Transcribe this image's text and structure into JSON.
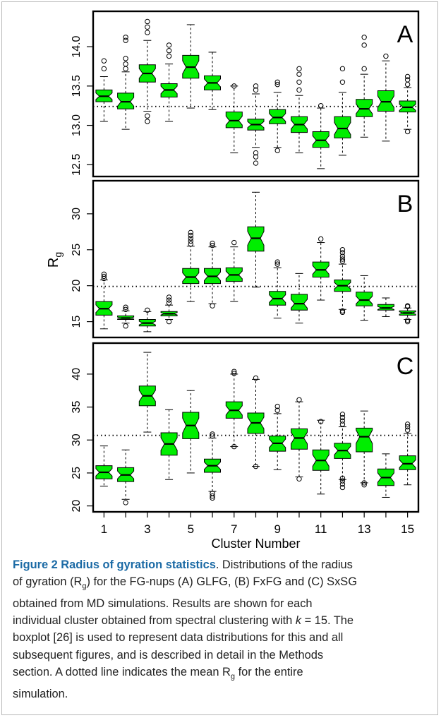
{
  "chart_data": {
    "type": "boxplot",
    "shared_x": {
      "label": "Cluster Number",
      "categories": [
        1,
        2,
        3,
        4,
        5,
        6,
        7,
        8,
        9,
        10,
        11,
        12,
        13,
        14,
        15
      ],
      "tick_labels": [
        "1",
        "3",
        "5",
        "7",
        "9",
        "11",
        "13",
        "15"
      ]
    },
    "y_axis_label": "Rg",
    "panels": [
      {
        "panel_label": "A",
        "ylim": [
          12.35,
          14.45
        ],
        "y_ticks": [
          "12.5",
          "13.0",
          "13.5",
          "14.0"
        ],
        "mean_line": 13.24,
        "boxes": [
          {
            "whisker_low": 13.05,
            "q1": 13.3,
            "median": 13.37,
            "q3": 13.45,
            "whisker_high": 13.62,
            "outliers": [
              13.72,
              13.82
            ]
          },
          {
            "whisker_low": 12.95,
            "q1": 13.21,
            "median": 13.3,
            "q3": 13.41,
            "whisker_high": 13.68,
            "outliers": [
              13.72,
              13.78,
              13.85,
              14.08,
              14.12
            ]
          },
          {
            "whisker_low": 13.18,
            "q1": 13.55,
            "median": 13.66,
            "q3": 13.77,
            "whisker_high": 14.08,
            "outliers": [
              13.05,
              13.12,
              14.18,
              14.25,
              14.32
            ]
          },
          {
            "whisker_low": 13.05,
            "q1": 13.36,
            "median": 13.45,
            "q3": 13.53,
            "whisker_high": 13.78,
            "outliers": [
              13.88,
              13.95,
              14.02
            ]
          },
          {
            "whisker_low": 13.22,
            "q1": 13.6,
            "median": 13.74,
            "q3": 13.89,
            "whisker_high": 14.28,
            "outliers": []
          },
          {
            "whisker_low": 13.2,
            "q1": 13.45,
            "median": 13.54,
            "q3": 13.63,
            "whisker_high": 13.93,
            "outliers": []
          },
          {
            "whisker_low": 12.65,
            "q1": 12.97,
            "median": 13.06,
            "q3": 13.17,
            "whisker_high": 13.5,
            "outliers": [
              13.5
            ]
          },
          {
            "whisker_low": 12.72,
            "q1": 12.94,
            "median": 13.01,
            "q3": 13.08,
            "whisker_high": 13.4,
            "outliers": [
              12.52,
              12.6,
              12.65,
              13.45,
              13.5
            ]
          },
          {
            "whisker_low": 12.72,
            "q1": 13.02,
            "median": 13.1,
            "q3": 13.2,
            "whisker_high": 13.42,
            "outliers": [
              12.68,
              13.52,
              13.55
            ]
          },
          {
            "whisker_low": 12.65,
            "q1": 12.91,
            "median": 13.01,
            "q3": 13.11,
            "whisker_high": 13.38,
            "outliers": [
              13.45,
              13.55,
              13.65,
              13.72
            ]
          },
          {
            "whisker_low": 12.45,
            "q1": 12.72,
            "median": 12.81,
            "q3": 12.92,
            "whisker_high": 13.22,
            "outliers": [
              13.25
            ]
          },
          {
            "whisker_low": 12.62,
            "q1": 12.84,
            "median": 12.96,
            "q3": 13.11,
            "whisker_high": 13.42,
            "outliers": [
              13.55,
              13.72
            ]
          },
          {
            "whisker_low": 12.85,
            "q1": 13.11,
            "median": 13.21,
            "q3": 13.33,
            "whisker_high": 13.65,
            "outliers": [
              13.72,
              14.02,
              14.12
            ]
          },
          {
            "whisker_low": 12.8,
            "q1": 13.18,
            "median": 13.3,
            "q3": 13.44,
            "whisker_high": 13.82,
            "outliers": [
              13.88
            ]
          },
          {
            "whisker_low": 12.95,
            "q1": 13.17,
            "median": 13.23,
            "q3": 13.31,
            "whisker_high": 13.48,
            "outliers": [
              12.92,
              13.52,
              13.58,
              13.62
            ]
          }
        ]
      },
      {
        "panel_label": "B",
        "ylim": [
          12.8,
          34.6
        ],
        "y_ticks": [
          "15",
          "20",
          "25",
          "30"
        ],
        "mean_line": 19.9,
        "boxes": [
          {
            "whisker_low": 14.0,
            "q1": 15.9,
            "median": 16.8,
            "q3": 17.8,
            "whisker_high": 20.8,
            "outliers": [
              21.0,
              21.3,
              21.6
            ]
          },
          {
            "whisker_low": 14.8,
            "q1": 15.3,
            "median": 15.5,
            "q3": 15.8,
            "whisker_high": 16.5,
            "outliers": [
              14.4,
              16.7,
              17.0
            ]
          },
          {
            "whisker_low": 13.6,
            "q1": 14.4,
            "median": 14.8,
            "q3": 15.3,
            "whisker_high": 16.4,
            "outliers": [
              16.6
            ]
          },
          {
            "whisker_low": 15.3,
            "q1": 15.8,
            "median": 16.1,
            "q3": 16.4,
            "whisker_high": 17.3,
            "outliers": [
              15.0,
              17.6,
              18.0,
              18.4
            ]
          },
          {
            "whisker_low": 17.8,
            "q1": 20.3,
            "median": 21.2,
            "q3": 22.4,
            "whisker_high": 25.5,
            "outliers": [
              25.8,
              26.2,
              26.6,
              27.0,
              27.4
            ]
          },
          {
            "whisker_low": 17.5,
            "q1": 20.3,
            "median": 21.3,
            "q3": 22.4,
            "whisker_high": 25.4,
            "outliers": [
              17.2,
              25.6,
              25.9
            ]
          },
          {
            "whisker_low": 17.8,
            "q1": 20.6,
            "median": 21.5,
            "q3": 22.5,
            "whisker_high": 25.4,
            "outliers": [
              26.0
            ]
          },
          {
            "whisker_low": 19.8,
            "q1": 24.8,
            "median": 26.6,
            "q3": 28.2,
            "whisker_high": 33.0,
            "outliers": []
          },
          {
            "whisker_low": 15.5,
            "q1": 17.3,
            "median": 18.2,
            "q3": 19.2,
            "whisker_high": 22.5,
            "outliers": [
              23.0,
              23.3
            ]
          },
          {
            "whisker_low": 14.8,
            "q1": 16.6,
            "median": 17.5,
            "q3": 18.8,
            "whisker_high": 21.7,
            "outliers": []
          },
          {
            "whisker_low": 18.0,
            "q1": 21.2,
            "median": 22.2,
            "q3": 23.3,
            "whisker_high": 26.0,
            "outliers": [
              26.5
            ]
          },
          {
            "whisker_low": 16.7,
            "q1": 19.2,
            "median": 20.0,
            "q3": 20.8,
            "whisker_high": 23.0,
            "outliers": [
              16.3,
              16.5,
              23.4,
              23.7,
              24.1,
              24.6,
              25.0
            ]
          },
          {
            "whisker_low": 15.2,
            "q1": 17.2,
            "median": 18.0,
            "q3": 19.1,
            "whisker_high": 21.4,
            "outliers": []
          },
          {
            "whisker_low": 15.7,
            "q1": 16.6,
            "median": 16.9,
            "q3": 17.4,
            "whisker_high": 18.3,
            "outliers": []
          },
          {
            "whisker_low": 15.3,
            "q1": 15.9,
            "median": 16.2,
            "q3": 16.5,
            "whisker_high": 16.9,
            "outliers": [
              15.0,
              15.2,
              17.1,
              17.2
            ]
          }
        ]
      },
      {
        "panel_label": "C",
        "ylim": [
          19.1,
          44.7
        ],
        "y_ticks": [
          "20",
          "25",
          "30",
          "35",
          "40"
        ],
        "mean_line": 30.7,
        "boxes": [
          {
            "whisker_low": 23.0,
            "q1": 24.1,
            "median": 25.1,
            "q3": 26.1,
            "whisker_high": 29.1,
            "outliers": []
          },
          {
            "whisker_low": 21.0,
            "q1": 23.7,
            "median": 24.7,
            "q3": 25.8,
            "whisker_high": 28.5,
            "outliers": [
              20.5
            ]
          },
          {
            "whisker_low": 31.2,
            "q1": 35.2,
            "median": 36.7,
            "q3": 38.2,
            "whisker_high": 43.3,
            "outliers": []
          },
          {
            "whisker_low": 24.0,
            "q1": 27.7,
            "median": 29.4,
            "q3": 31.1,
            "whisker_high": 34.6,
            "outliers": []
          },
          {
            "whisker_low": 25.0,
            "q1": 30.2,
            "median": 32.2,
            "q3": 34.2,
            "whisker_high": 37.5,
            "outliers": []
          },
          {
            "whisker_low": 22.2,
            "q1": 25.1,
            "median": 26.1,
            "q3": 27.1,
            "whisker_high": 30.3,
            "outliers": [
              21.2,
              21.5,
              21.9,
              30.6,
              30.9
            ]
          },
          {
            "whisker_low": 29.0,
            "q1": 33.3,
            "median": 34.5,
            "q3": 35.8,
            "whisker_high": 40.0,
            "outliers": [
              29.0,
              40.1,
              40.4
            ]
          },
          {
            "whisker_low": 26.0,
            "q1": 31.0,
            "median": 32.6,
            "q3": 34.1,
            "whisker_high": 39.2,
            "outliers": [
              26.0,
              39.4
            ]
          },
          {
            "whisker_low": 25.5,
            "q1": 28.3,
            "median": 29.5,
            "q3": 30.6,
            "whisker_high": 34.0,
            "outliers": [
              34.5,
              35.1
            ]
          },
          {
            "whisker_low": 24.4,
            "q1": 28.6,
            "median": 30.3,
            "q3": 31.7,
            "whisker_high": 35.8,
            "outliers": [
              24.1,
              36.1
            ]
          },
          {
            "whisker_low": 21.8,
            "q1": 25.4,
            "median": 26.9,
            "q3": 28.5,
            "whisker_high": 33.0,
            "outliers": [
              32.8
            ]
          },
          {
            "whisker_low": 24.0,
            "q1": 27.2,
            "median": 28.4,
            "q3": 29.5,
            "whisker_high": 32.0,
            "outliers": [
              22.8,
              23.3,
              23.8,
              24.2,
              32.4,
              32.9,
              33.4,
              33.9
            ]
          },
          {
            "whisker_low": 23.5,
            "q1": 28.2,
            "median": 30.5,
            "q3": 31.8,
            "whisker_high": 34.4,
            "outliers": [
              23.2,
              23.5
            ]
          },
          {
            "whisker_low": 21.3,
            "q1": 23.1,
            "median": 24.3,
            "q3": 25.6,
            "whisker_high": 27.9,
            "outliers": []
          },
          {
            "whisker_low": 23.2,
            "q1": 25.5,
            "median": 26.4,
            "q3": 27.6,
            "whisker_high": 31.0,
            "outliers": [
              31.5,
              32.0,
              32.4
            ]
          }
        ]
      }
    ],
    "box_color": "#00ee00",
    "grid": false
  },
  "caption": {
    "lines": [
      {
        "title": "Figure 2 Radius of gyration statistics",
        "text": ". Distributions of the radius"
      },
      {
        "text": "of gyration (R",
        "sub": "g",
        "text2": ") for the FG-nups (A) GLFG, (B) FxFG and (C) SxSG"
      },
      {
        "text": "obtained from MD simulations. Results are shown for each"
      },
      {
        "text": "individual cluster obtained from spectral clustering with ",
        "ital": "k",
        "text2": " = 15. The"
      },
      {
        "text": "boxplot [26] is used to represent data distributions for this and all"
      },
      {
        "text": "subsequent figures, and is described in detail in the Methods"
      },
      {
        "text": "section. A dotted line indicates the mean R",
        "sub": "g",
        "text2": " for the entire"
      },
      {
        "text": "simulation."
      }
    ]
  }
}
